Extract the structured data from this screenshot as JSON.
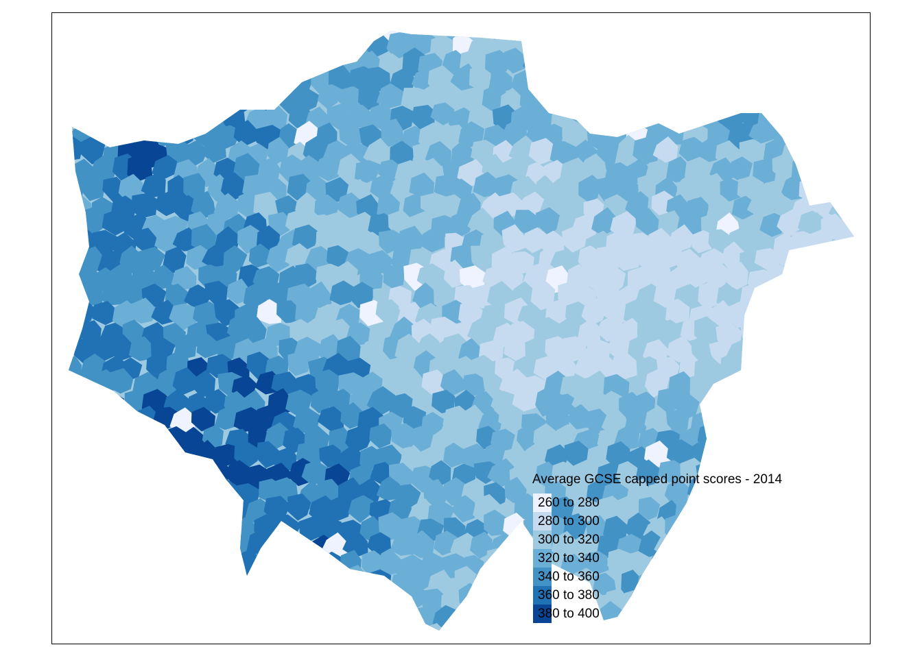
{
  "legend": {
    "title": "Average GCSE capped point scores - 2014",
    "items": [
      {
        "label": "260 to 280",
        "color": "#eff3ff"
      },
      {
        "label": "280 to 300",
        "color": "#c6dbef"
      },
      {
        "label": "300 to 320",
        "color": "#9ecae1"
      },
      {
        "label": "320 to 340",
        "color": "#6baed6"
      },
      {
        "label": "340 to 360",
        "color": "#4292c6"
      },
      {
        "label": "360 to 380",
        "color": "#2171b5"
      },
      {
        "label": "380 to 400",
        "color": "#084594"
      }
    ]
  }
}
